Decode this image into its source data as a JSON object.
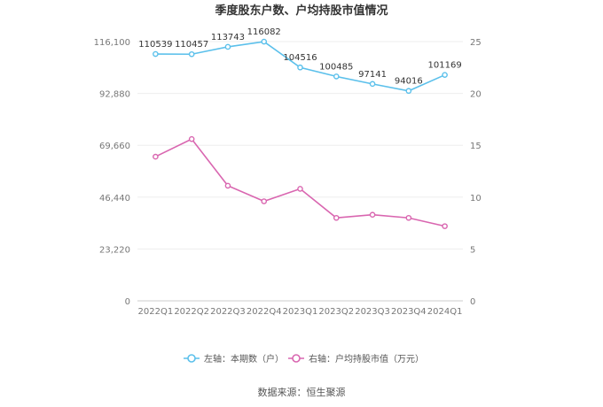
{
  "chart_data": {
    "type": "line",
    "title": "季度股东户数、户均持股市值情况",
    "categories": [
      "2022Q1",
      "2022Q2",
      "2022Q3",
      "2022Q4",
      "2023Q1",
      "2023Q2",
      "2023Q3",
      "2023Q4",
      "2024Q1"
    ],
    "left_axis": {
      "ticks": [
        "0",
        "23,220",
        "46,440",
        "69,660",
        "92,880",
        "116,100"
      ],
      "ylim": [
        0,
        116100
      ]
    },
    "right_axis": {
      "ticks": [
        "0",
        "5",
        "10",
        "15",
        "20",
        "25"
      ],
      "ylim": [
        0,
        25
      ]
    },
    "grid": true,
    "legend_position": "bottom",
    "series": [
      {
        "name": "左轴：本期数（户）",
        "axis": "left",
        "color": "#5bc0eb",
        "values": [
          110539,
          110457,
          113743,
          116082,
          104516,
          100485,
          97141,
          94016,
          101169
        ],
        "labels": [
          "110539",
          "110457",
          "113743",
          "116082",
          "104516",
          "100485",
          "97141",
          "94016",
          "101169"
        ]
      },
      {
        "name": "右轴：户均持股市值（万元）",
        "axis": "right",
        "color": "#d966b0",
        "values": [
          13.9,
          15.6,
          11.1,
          9.6,
          10.8,
          8.0,
          8.3,
          8.0,
          7.2
        ]
      }
    ]
  },
  "source": "数据来源：恒生聚源"
}
